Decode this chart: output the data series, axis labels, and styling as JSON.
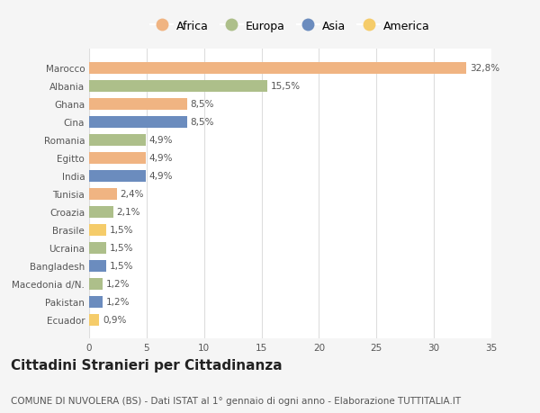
{
  "countries": [
    "Marocco",
    "Albania",
    "Ghana",
    "Cina",
    "Romania",
    "Egitto",
    "India",
    "Tunisia",
    "Croazia",
    "Brasile",
    "Ucraina",
    "Bangladesh",
    "Macedonia d/N.",
    "Pakistan",
    "Ecuador"
  ],
  "values": [
    32.8,
    15.5,
    8.5,
    8.5,
    4.9,
    4.9,
    4.9,
    2.4,
    2.1,
    1.5,
    1.5,
    1.5,
    1.2,
    1.2,
    0.9
  ],
  "labels": [
    "32,8%",
    "15,5%",
    "8,5%",
    "8,5%",
    "4,9%",
    "4,9%",
    "4,9%",
    "2,4%",
    "2,1%",
    "1,5%",
    "1,5%",
    "1,5%",
    "1,2%",
    "1,2%",
    "0,9%"
  ],
  "continents": [
    "Africa",
    "Europa",
    "Africa",
    "Asia",
    "Europa",
    "Africa",
    "Asia",
    "Africa",
    "Europa",
    "America",
    "Europa",
    "Asia",
    "Europa",
    "Asia",
    "America"
  ],
  "colors": {
    "Africa": "#F0B482",
    "Europa": "#ADBF8A",
    "Asia": "#6B8CBE",
    "America": "#F5CC6A"
  },
  "legend_order": [
    "Africa",
    "Europa",
    "Asia",
    "America"
  ],
  "xlim": [
    0,
    35
  ],
  "xticks": [
    0,
    5,
    10,
    15,
    20,
    25,
    30,
    35
  ],
  "title": "Cittadini Stranieri per Cittadinanza",
  "subtitle": "COMUNE DI NUVOLERA (BS) - Dati ISTAT al 1° gennaio di ogni anno - Elaborazione TUTTITALIA.IT",
  "bg_color": "#F5F5F5",
  "bar_bg_color": "#FFFFFF",
  "grid_color": "#DDDDDD",
  "title_fontsize": 11,
  "subtitle_fontsize": 7.5,
  "label_fontsize": 7.5,
  "tick_fontsize": 7.5,
  "legend_fontsize": 9
}
